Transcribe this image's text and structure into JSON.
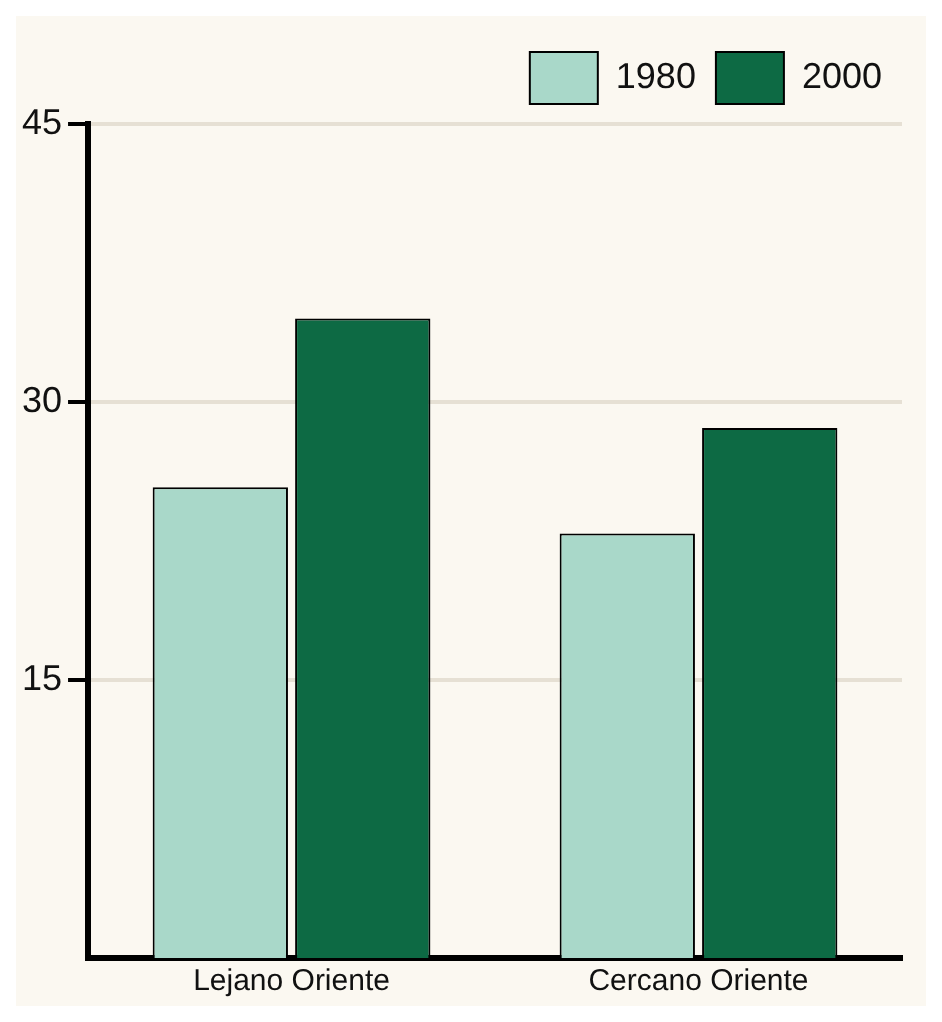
{
  "chart_data": {
    "type": "bar",
    "categories": [
      "Lejano Oriente",
      "Cercano Oriente"
    ],
    "series": [
      {
        "name": "1980",
        "color": "#a9d8c9",
        "values": [
          25.4,
          22.9
        ]
      },
      {
        "name": "2000",
        "color": "#0d6a44",
        "values": [
          34.5,
          28.6
        ]
      }
    ],
    "ylim": [
      0,
      45
    ],
    "yticks": [
      15,
      30,
      45
    ],
    "grid": "y",
    "legend": "top right"
  }
}
